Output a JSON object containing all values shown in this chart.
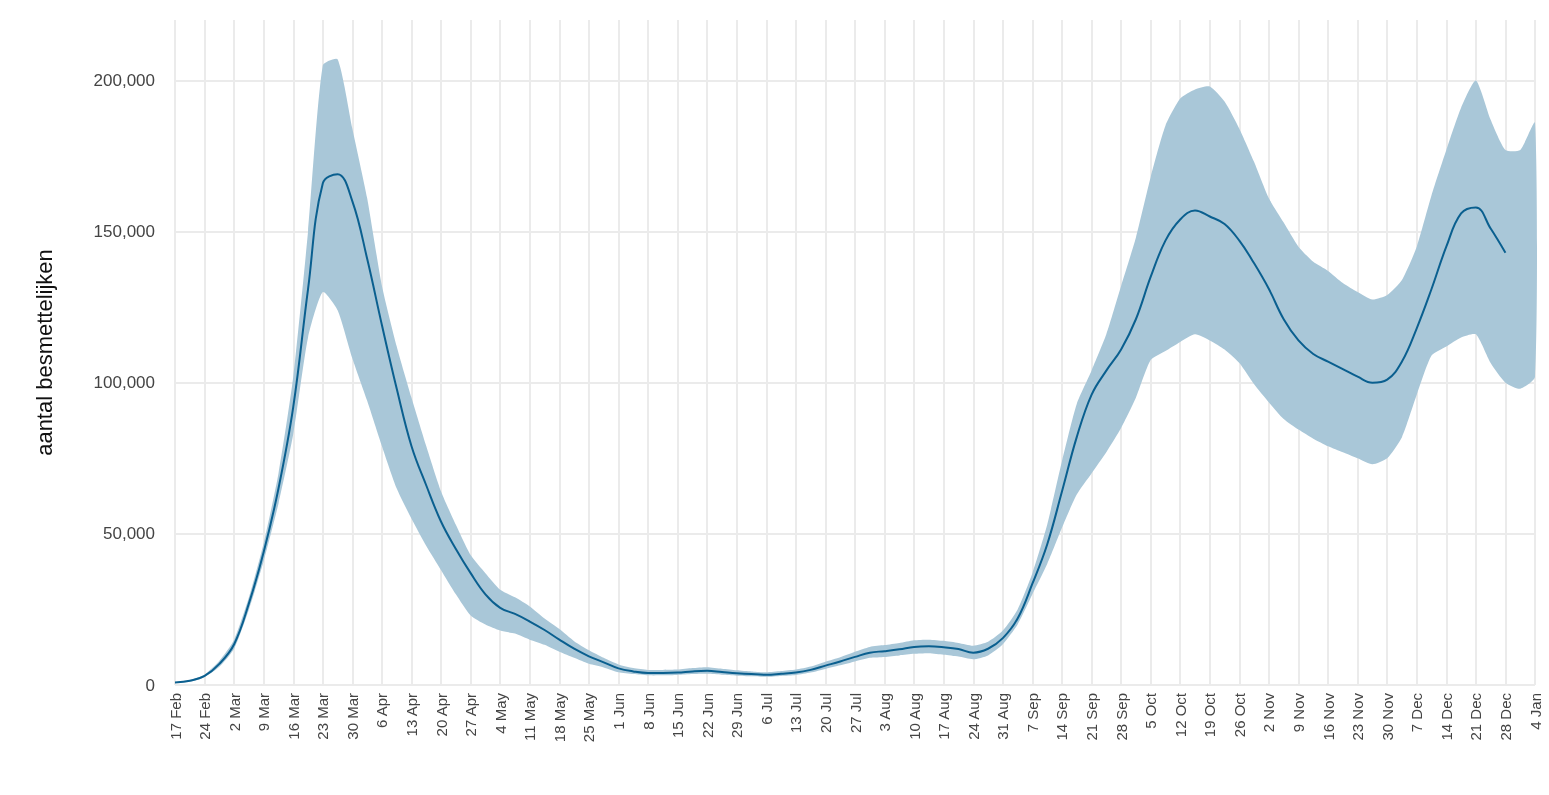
{
  "chart_data": {
    "type": "line",
    "ylabel": "aantal besmettelijken",
    "categories": [
      "17 Feb",
      null,
      "24 Feb",
      null,
      "2 Mar",
      null,
      "9 Mar",
      null,
      "16 Mar",
      null,
      "23 Mar",
      null,
      "30 Mar",
      null,
      "6 Apr",
      null,
      "13 Apr",
      null,
      "20 Apr",
      null,
      "27 Apr",
      null,
      "4 May",
      null,
      "11 May",
      null,
      "18 May",
      null,
      "25 May",
      null,
      "1 Jun",
      null,
      "8 Jun",
      null,
      "15 Jun",
      null,
      "22 Jun",
      null,
      "29 Jun",
      null,
      "6 Jul",
      null,
      "13 Jul",
      null,
      "20 Jul",
      null,
      "27 Jul",
      null,
      "3 Aug",
      null,
      "10 Aug",
      null,
      "17 Aug",
      null,
      "24 Aug",
      null,
      "31 Aug",
      null,
      "7 Sep",
      null,
      "14 Sep",
      null,
      "21 Sep",
      null,
      "28 Sep",
      null,
      "5 Oct",
      null,
      "12 Oct",
      null,
      "19 Oct",
      null,
      "26 Oct",
      null,
      "2 Nov",
      null,
      "9 Nov",
      null,
      "16 Nov",
      null,
      "23 Nov",
      null,
      "30 Nov",
      null,
      "7 Dec",
      null,
      "14 Dec",
      null,
      "21 Dec",
      null,
      "28 Dec",
      null,
      "4 Jan"
    ],
    "ylim": [
      0,
      220000
    ],
    "yticks": [
      {
        "value": 0,
        "label": "0"
      },
      {
        "value": 50000,
        "label": "50,000"
      },
      {
        "value": 100000,
        "label": "100,000"
      },
      {
        "value": 150000,
        "label": "150,000"
      },
      {
        "value": 200000,
        "label": "200,000"
      }
    ],
    "grid": true,
    "series": [
      {
        "color": "#0a5f8f",
        "values": [
          800,
          1400,
          3000,
          7000,
          13500,
          27000,
          44000,
          65000,
          92000,
          131000,
          166000,
          169000,
          160000,
          141000,
          119000,
          98000,
          79000,
          66000,
          54000,
          45000,
          37000,
          30000,
          25500,
          23500,
          21000,
          18200,
          15000,
          12000,
          9500,
          7500,
          5500,
          4500,
          4000,
          4000,
          4100,
          4500,
          4700,
          4300,
          3900,
          3600,
          3400,
          3700,
          4100,
          5000,
          6400,
          7800,
          9300,
          10700,
          11200,
          11800,
          12600,
          12800,
          12500,
          11900,
          10700,
          12000,
          15500,
          22000,
          33500,
          46500,
          64000,
          82000,
          96000,
          104000,
          111000,
          121000,
          135000,
          147000,
          154000,
          157000,
          155000,
          152500,
          147000,
          139500,
          131000,
          121000,
          114000,
          109500,
          107000,
          104500,
          102000,
          100000,
          101000,
          107000,
          118000,
          131000,
          145000,
          156000,
          158000,
          151000,
          143000,
          null,
          null
        ],
        "lower": [
          650,
          1100,
          2600,
          6000,
          12000,
          25000,
          41000,
          60000,
          83000,
          115000,
          130000,
          124000,
          108000,
          94000,
          79000,
          65000,
          55000,
          46000,
          38000,
          30000,
          23000,
          20000,
          18000,
          17000,
          15000,
          13300,
          11000,
          9000,
          7000,
          5800,
          4200,
          3600,
          3200,
          3200,
          3300,
          3600,
          3700,
          3400,
          3100,
          2900,
          2700,
          3000,
          3300,
          4100,
          5300,
          6500,
          7800,
          9000,
          9300,
          9800,
          10300,
          10500,
          10000,
          9400,
          8500,
          9800,
          13500,
          20000,
          30000,
          40000,
          52000,
          63000,
          70000,
          77000,
          85000,
          95000,
          107500,
          110500,
          113500,
          116000,
          114000,
          111000,
          106500,
          99500,
          93500,
          88000,
          84500,
          81500,
          79000,
          77000,
          75000,
          73000,
          75000,
          82000,
          96000,
          109000,
          112000,
          115000,
          116000,
          106500,
          100000,
          98000,
          102000
        ],
        "upper": [
          950,
          1600,
          3400,
          8000,
          15000,
          29000,
          47000,
          70000,
          102000,
          150000,
          205000,
          207000,
          184000,
          161000,
          132000,
          112000,
          95000,
          79000,
          64000,
          53000,
          43000,
          37000,
          31500,
          29000,
          26000,
          22000,
          18500,
          14500,
          11500,
          9000,
          6800,
          5600,
          5000,
          5000,
          5100,
          5600,
          5900,
          5400,
          4900,
          4500,
          4200,
          4600,
          5100,
          6100,
          7700,
          9200,
          11000,
          12600,
          13200,
          13900,
          14800,
          15000,
          14600,
          13900,
          13000,
          14300,
          18000,
          25000,
          37000,
          53000,
          74000,
          93000,
          104000,
          116000,
          132000,
          148000,
          168000,
          185000,
          194000,
          197000,
          198000,
          193000,
          184000,
          173000,
          161000,
          153000,
          145000,
          140000,
          137000,
          133000,
          130000,
          127500,
          129000,
          134000,
          145000,
          162000,
          177000,
          191000,
          200000,
          187000,
          177000,
          177000,
          186000
        ]
      }
    ]
  }
}
